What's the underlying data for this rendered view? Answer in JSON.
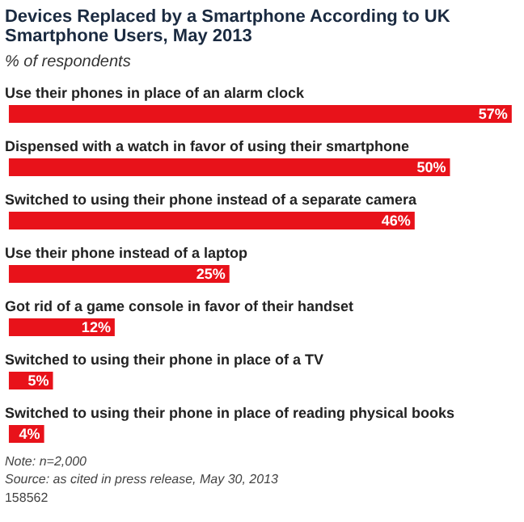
{
  "chart_data": {
    "type": "bar",
    "orientation": "horizontal",
    "title": "Devices Replaced by a Smartphone According to UK Smartphone Users, May 2013",
    "subtitle": "% of respondents",
    "categories": [
      "Use their phones in place of an alarm clock",
      "Dispensed with a watch in favor of using their smartphone",
      "Switched to using their phone instead of a separate camera",
      "Use their phone instead of a laptop",
      "Got rid of a game console in favor of their handset",
      "Switched to using their phone in place of a TV",
      "Switched to using their phone in place of reading physical books"
    ],
    "values": [
      57,
      50,
      46,
      25,
      12,
      5,
      4
    ],
    "value_labels": [
      "57%",
      "50%",
      "46%",
      "25%",
      "12%",
      "5%",
      "4%"
    ],
    "color": "#e8121a",
    "annotations": [
      "Note: n=2,000",
      "Source: as cited in press release, May 30, 2013",
      "158562"
    ]
  }
}
